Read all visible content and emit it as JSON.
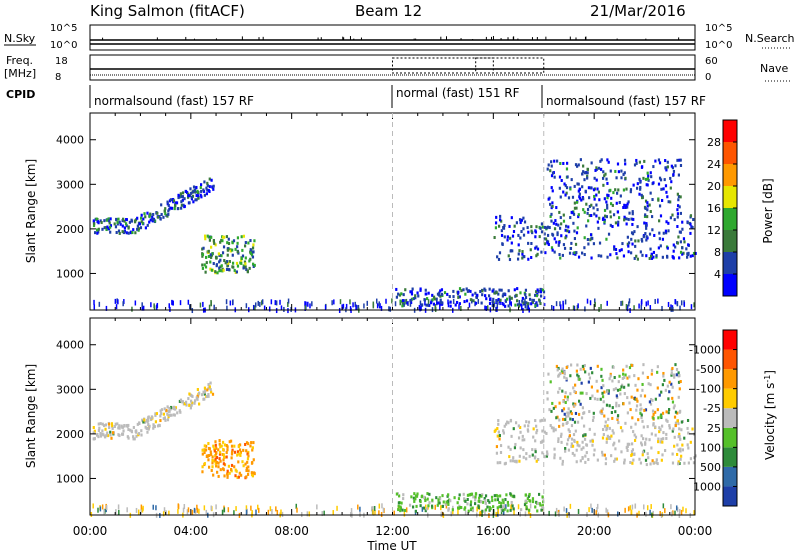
{
  "header": {
    "title": "King Salmon (fitACF)",
    "beam": "Beam 12",
    "date": "21/Mar/2016"
  },
  "status": {
    "left_labels": {
      "nsky": "N.Sky",
      "freq_line1": "Freq.",
      "freq_line2": "[MHz]",
      "cpid": "CPID"
    },
    "right_labels": {
      "nsearch": "N.Search",
      "nave": "Nave"
    },
    "nsky_ticks": [
      "10^5",
      "10^0"
    ],
    "freq_ticks": [
      "18",
      "8"
    ],
    "nsearch_ticks": [
      "10^5",
      "10^0"
    ],
    "nave_ticks": [
      "60",
      "0"
    ],
    "cpid_segments": [
      {
        "label": "normalsound (fast) 157 RF",
        "start_hour": 0,
        "end_hour": 12
      },
      {
        "label": "normal (fast) 151 RF",
        "start_hour": 12,
        "end_hour": 18
      },
      {
        "label": "normalsound (fast) 157 RF",
        "start_hour": 18,
        "end_hour": 24
      }
    ]
  },
  "chart_data": [
    {
      "type": "heatmap",
      "name": "power",
      "ylabel": "Slant Range [km]",
      "xlabel": "Time UT",
      "xlim": [
        0,
        24
      ],
      "ylim": [
        180,
        4600
      ],
      "yticks": [
        "1000",
        "2000",
        "3000",
        "4000"
      ],
      "xticks": [
        "00:00",
        "04:00",
        "08:00",
        "12:00",
        "16:00",
        "20:00",
        "00:00"
      ],
      "colorbar": {
        "label": "Power [dB]",
        "ticks": [
          "4",
          "8",
          "12",
          "16",
          "20",
          "24",
          "28"
        ],
        "colors": [
          "#0000ff",
          "#1e3fa8",
          "#3a7a3a",
          "#2ea82e",
          "#e6e600",
          "#ff9900",
          "#ff5500",
          "#ff0000"
        ]
      },
      "regions": [
        {
          "t": [
            0.1,
            4.9
          ],
          "range": [
            1900,
            3000
          ],
          "level": "low"
        },
        {
          "t": [
            4.4,
            6.5
          ],
          "range": [
            1000,
            1850
          ],
          "level": "mid"
        },
        {
          "t": [
            12.1,
            18.0
          ],
          "range": [
            250,
            650
          ],
          "level": "low"
        },
        {
          "t": [
            16.0,
            24.0
          ],
          "range": [
            1300,
            2300
          ],
          "level": "low"
        },
        {
          "t": [
            18.1,
            23.4
          ],
          "range": [
            2300,
            3550
          ],
          "level": "low"
        }
      ]
    },
    {
      "type": "heatmap",
      "name": "velocity",
      "ylabel": "Slant Range [km]",
      "xlabel": "Time UT",
      "xlim": [
        0,
        24
      ],
      "ylim": [
        180,
        4600
      ],
      "yticks": [
        "1000",
        "2000",
        "3000",
        "4000"
      ],
      "xticks": [
        "00:00",
        "04:00",
        "08:00",
        "12:00",
        "16:00",
        "20:00",
        "00:00"
      ],
      "colorbar": {
        "label": "Velocity [m s^-1]",
        "ticks": [
          "1000",
          "500",
          "100",
          "25",
          "-25",
          "-100",
          "-500",
          "-1000"
        ],
        "colors": [
          "#1e3fa8",
          "#2f6aa8",
          "#2e8b3a",
          "#55c02a",
          "#bbbbbb",
          "#ffcc00",
          "#ff9900",
          "#ff5500",
          "#ff0000"
        ]
      },
      "regions": [
        {
          "t": [
            0.1,
            4.9
          ],
          "range": [
            1900,
            3000
          ],
          "level": "near-zero"
        },
        {
          "t": [
            4.4,
            6.5
          ],
          "range": [
            1000,
            1850
          ],
          "level": "negative"
        },
        {
          "t": [
            12.1,
            18.0
          ],
          "range": [
            250,
            650
          ],
          "level": "positive"
        },
        {
          "t": [
            16.0,
            24.0
          ],
          "range": [
            1300,
            2300
          ],
          "level": "near-zero"
        },
        {
          "t": [
            18.1,
            23.4
          ],
          "range": [
            2300,
            3550
          ],
          "level": "mixed"
        }
      ]
    }
  ]
}
